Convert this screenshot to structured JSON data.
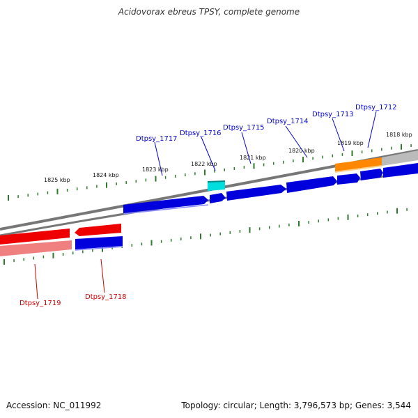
{
  "title": "Acidovorax ebreus TPSY, complete genome",
  "accession_text": "Accession: NC_011992",
  "topology_text": "Topology: circular; Length: 3,796,573 bp; Genes: 3,544",
  "colors": {
    "forward_gene": "#0000dd",
    "reverse_gene": "#ee0000",
    "reverse_gene_faded": "#f08080",
    "rna_gene": "#00dddd",
    "highlight_gene": "#ff8800",
    "backbone": "#777777",
    "tick": "#2d7a2d",
    "forward_label": "#0000cc",
    "reverse_label": "#cc0000"
  },
  "scale_labels": [
    {
      "id": "1825",
      "text": "1825 kbp"
    },
    {
      "id": "1824",
      "text": "1824 kbp"
    },
    {
      "id": "1823",
      "text": "1823 kbp"
    },
    {
      "id": "1822",
      "text": "1822 kbp"
    },
    {
      "id": "1821",
      "text": "1821 kbp"
    },
    {
      "id": "1820",
      "text": "1820 kbp"
    },
    {
      "id": "1819",
      "text": "1819 kbp"
    },
    {
      "id": "1818",
      "text": "1818 kbp"
    }
  ],
  "gene_labels": [
    {
      "id": "dtpsy1712",
      "text": "Dtpsy_1712",
      "strand": "forward"
    },
    {
      "id": "dtpsy1713",
      "text": "Dtpsy_1713",
      "strand": "forward"
    },
    {
      "id": "dtpsy1714",
      "text": "Dtpsy_1714",
      "strand": "forward"
    },
    {
      "id": "dtpsy1715",
      "text": "Dtpsy_1715",
      "strand": "forward"
    },
    {
      "id": "dtpsy1716",
      "text": "Dtpsy_1716",
      "strand": "forward"
    },
    {
      "id": "dtpsy1717",
      "text": "Dtpsy_1717",
      "strand": "forward"
    },
    {
      "id": "dtpsy1718",
      "text": "Dtpsy_1718",
      "strand": "reverse"
    },
    {
      "id": "dtpsy1719",
      "text": "Dtpsy_1719",
      "strand": "reverse"
    }
  ]
}
